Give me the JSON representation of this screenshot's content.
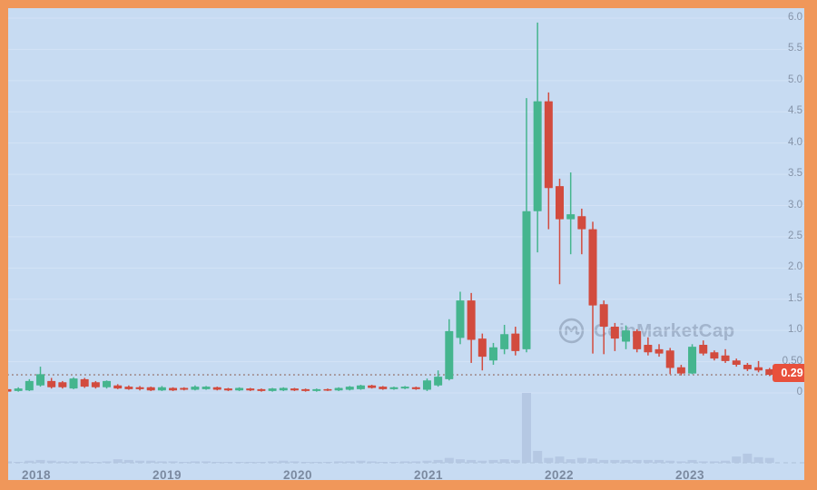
{
  "watermark": {
    "text": "CoinMarketCap"
  },
  "price_badge": {
    "label": "0.29"
  },
  "colors": {
    "up": "#45b58e",
    "down": "#d24b3e",
    "badge": "#e8503c",
    "background": "#c7dbf2",
    "frame": "#f0975a",
    "volume": "#b2c4e1",
    "axis_text": "#8593a8",
    "year_text": "#7b8aa0",
    "watermark_text": "#808fa8",
    "price_line": "#9a7d7a",
    "grid_line": "#dde9f9",
    "axis_dash_line": "#a9bad2"
  },
  "chart_data": {
    "type": "candlestick",
    "title": "",
    "xlabel": "",
    "ylabel": "",
    "grid": "horizontal-faint",
    "legend": "none",
    "last_price": 0.29,
    "x_axis": {
      "tick_labels": [
        "2018",
        "2019",
        "2020",
        "2021",
        "2022",
        "2023"
      ]
    },
    "y_axis": {
      "tick_labels": [
        "6.0",
        "5.5",
        "5.0",
        "4.5",
        "4.0",
        "3.5",
        "3.0",
        "2.5",
        "2.0",
        "1.5",
        "1.0",
        "0.50",
        "0"
      ],
      "tick_values": [
        6,
        5.5,
        5,
        4.5,
        4,
        3.5,
        3,
        2.5,
        2,
        1.5,
        1,
        0.5,
        0
      ],
      "range": [
        0,
        6.2
      ]
    },
    "volume_axis": {
      "range": [
        0,
        100
      ]
    },
    "candles": [
      {
        "o": 0.06,
        "h": 0.08,
        "l": 0.01,
        "c": 0.02,
        "v": 2
      },
      {
        "o": 0.03,
        "h": 0.09,
        "l": 0.02,
        "c": 0.07,
        "v": 1
      },
      {
        "o": 0.04,
        "h": 0.22,
        "l": 0.03,
        "c": 0.19,
        "v": 3
      },
      {
        "o": 0.12,
        "h": 0.42,
        "l": 0.1,
        "c": 0.3,
        "v": 4
      },
      {
        "o": 0.19,
        "h": 0.24,
        "l": 0.07,
        "c": 0.09,
        "v": 3
      },
      {
        "o": 0.17,
        "h": 0.19,
        "l": 0.07,
        "c": 0.09,
        "v": 2
      },
      {
        "o": 0.07,
        "h": 0.25,
        "l": 0.06,
        "c": 0.23,
        "v": 2
      },
      {
        "o": 0.22,
        "h": 0.24,
        "l": 0.08,
        "c": 0.1,
        "v": 2
      },
      {
        "o": 0.17,
        "h": 0.19,
        "l": 0.07,
        "c": 0.09,
        "v": 1
      },
      {
        "o": 0.09,
        "h": 0.2,
        "l": 0.07,
        "c": 0.19,
        "v": 2
      },
      {
        "o": 0.12,
        "h": 0.14,
        "l": 0.06,
        "c": 0.07,
        "v": 5
      },
      {
        "o": 0.1,
        "h": 0.12,
        "l": 0.05,
        "c": 0.06,
        "v": 4
      },
      {
        "o": 0.09,
        "h": 0.11,
        "l": 0.04,
        "c": 0.06,
        "v": 3
      },
      {
        "o": 0.09,
        "h": 0.1,
        "l": 0.03,
        "c": 0.04,
        "v": 3
      },
      {
        "o": 0.04,
        "h": 0.11,
        "l": 0.03,
        "c": 0.09,
        "v": 2
      },
      {
        "o": 0.08,
        "h": 0.09,
        "l": 0.03,
        "c": 0.04,
        "v": 2
      },
      {
        "o": 0.08,
        "h": 0.09,
        "l": 0.04,
        "c": 0.05,
        "v": 1
      },
      {
        "o": 0.05,
        "h": 0.12,
        "l": 0.04,
        "c": 0.1,
        "v": 2
      },
      {
        "o": 0.06,
        "h": 0.11,
        "l": 0.05,
        "c": 0.1,
        "v": 2
      },
      {
        "o": 0.09,
        "h": 0.1,
        "l": 0.04,
        "c": 0.05,
        "v": 1
      },
      {
        "o": 0.07,
        "h": 0.08,
        "l": 0.03,
        "c": 0.04,
        "v": 1
      },
      {
        "o": 0.04,
        "h": 0.09,
        "l": 0.03,
        "c": 0.08,
        "v": 1
      },
      {
        "o": 0.07,
        "h": 0.08,
        "l": 0.03,
        "c": 0.04,
        "v": 1
      },
      {
        "o": 0.06,
        "h": 0.07,
        "l": 0.02,
        "c": 0.03,
        "v": 1
      },
      {
        "o": 0.03,
        "h": 0.08,
        "l": 0.02,
        "c": 0.07,
        "v": 2
      },
      {
        "o": 0.04,
        "h": 0.09,
        "l": 0.03,
        "c": 0.08,
        "v": 3
      },
      {
        "o": 0.07,
        "h": 0.08,
        "l": 0.03,
        "c": 0.04,
        "v": 2
      },
      {
        "o": 0.06,
        "h": 0.07,
        "l": 0.02,
        "c": 0.03,
        "v": 1
      },
      {
        "o": 0.03,
        "h": 0.07,
        "l": 0.02,
        "c": 0.06,
        "v": 1
      },
      {
        "o": 0.06,
        "h": 0.07,
        "l": 0.03,
        "c": 0.04,
        "v": 1
      },
      {
        "o": 0.04,
        "h": 0.09,
        "l": 0.03,
        "c": 0.08,
        "v": 2
      },
      {
        "o": 0.05,
        "h": 0.11,
        "l": 0.04,
        "c": 0.1,
        "v": 2
      },
      {
        "o": 0.06,
        "h": 0.13,
        "l": 0.05,
        "c": 0.12,
        "v": 3
      },
      {
        "o": 0.12,
        "h": 0.13,
        "l": 0.07,
        "c": 0.08,
        "v": 2
      },
      {
        "o": 0.1,
        "h": 0.11,
        "l": 0.05,
        "c": 0.06,
        "v": 1
      },
      {
        "o": 0.06,
        "h": 0.1,
        "l": 0.05,
        "c": 0.09,
        "v": 1
      },
      {
        "o": 0.07,
        "h": 0.11,
        "l": 0.06,
        "c": 0.1,
        "v": 2
      },
      {
        "o": 0.09,
        "h": 0.1,
        "l": 0.05,
        "c": 0.06,
        "v": 2
      },
      {
        "o": 0.05,
        "h": 0.23,
        "l": 0.03,
        "c": 0.2,
        "v": 3
      },
      {
        "o": 0.12,
        "h": 0.36,
        "l": 0.1,
        "c": 0.26,
        "v": 4
      },
      {
        "o": 0.22,
        "h": 1.18,
        "l": 0.2,
        "c": 0.99,
        "v": 7
      },
      {
        "o": 0.88,
        "h": 1.62,
        "l": 0.78,
        "c": 1.48,
        "v": 5
      },
      {
        "o": 1.48,
        "h": 1.6,
        "l": 0.48,
        "c": 0.85,
        "v": 4
      },
      {
        "o": 0.87,
        "h": 0.95,
        "l": 0.36,
        "c": 0.58,
        "v": 3
      },
      {
        "o": 0.52,
        "h": 0.8,
        "l": 0.45,
        "c": 0.73,
        "v": 4
      },
      {
        "o": 0.7,
        "h": 1.09,
        "l": 0.62,
        "c": 0.94,
        "v": 5
      },
      {
        "o": 0.95,
        "h": 1.06,
        "l": 0.6,
        "c": 0.67,
        "v": 4
      },
      {
        "o": 0.7,
        "h": 4.72,
        "l": 0.65,
        "c": 2.91,
        "v": 100
      },
      {
        "o": 2.91,
        "h": 5.93,
        "l": 2.25,
        "c": 4.67,
        "v": 17
      },
      {
        "o": 4.67,
        "h": 4.81,
        "l": 2.62,
        "c": 3.28,
        "v": 7
      },
      {
        "o": 3.31,
        "h": 3.43,
        "l": 1.74,
        "c": 2.78,
        "v": 9
      },
      {
        "o": 2.78,
        "h": 3.53,
        "l": 2.22,
        "c": 2.86,
        "v": 5
      },
      {
        "o": 2.83,
        "h": 2.95,
        "l": 2.22,
        "c": 2.62,
        "v": 7
      },
      {
        "o": 2.62,
        "h": 2.74,
        "l": 0.63,
        "c": 1.4,
        "v": 6
      },
      {
        "o": 1.42,
        "h": 1.48,
        "l": 0.62,
        "c": 1.06,
        "v": 4
      },
      {
        "o": 1.06,
        "h": 1.12,
        "l": 0.67,
        "c": 0.87,
        "v": 4
      },
      {
        "o": 0.82,
        "h": 1.08,
        "l": 0.7,
        "c": 1.0,
        "v": 4
      },
      {
        "o": 0.99,
        "h": 1.02,
        "l": 0.65,
        "c": 0.7,
        "v": 4
      },
      {
        "o": 0.77,
        "h": 0.89,
        "l": 0.6,
        "c": 0.65,
        "v": 4
      },
      {
        "o": 0.7,
        "h": 0.78,
        "l": 0.58,
        "c": 0.63,
        "v": 4
      },
      {
        "o": 0.68,
        "h": 0.72,
        "l": 0.3,
        "c": 0.4,
        "v": 3
      },
      {
        "o": 0.41,
        "h": 0.45,
        "l": 0.28,
        "c": 0.31,
        "v": 2
      },
      {
        "o": 0.31,
        "h": 0.78,
        "l": 0.3,
        "c": 0.74,
        "v": 4
      },
      {
        "o": 0.77,
        "h": 0.84,
        "l": 0.6,
        "c": 0.63,
        "v": 2
      },
      {
        "o": 0.65,
        "h": 0.68,
        "l": 0.52,
        "c": 0.55,
        "v": 2
      },
      {
        "o": 0.6,
        "h": 0.7,
        "l": 0.48,
        "c": 0.51,
        "v": 3
      },
      {
        "o": 0.52,
        "h": 0.55,
        "l": 0.42,
        "c": 0.45,
        "v": 9
      },
      {
        "o": 0.45,
        "h": 0.48,
        "l": 0.35,
        "c": 0.38,
        "v": 13
      },
      {
        "o": 0.41,
        "h": 0.51,
        "l": 0.33,
        "c": 0.36,
        "v": 8
      },
      {
        "o": 0.38,
        "h": 0.4,
        "l": 0.27,
        "c": 0.29,
        "v": 7
      }
    ]
  }
}
